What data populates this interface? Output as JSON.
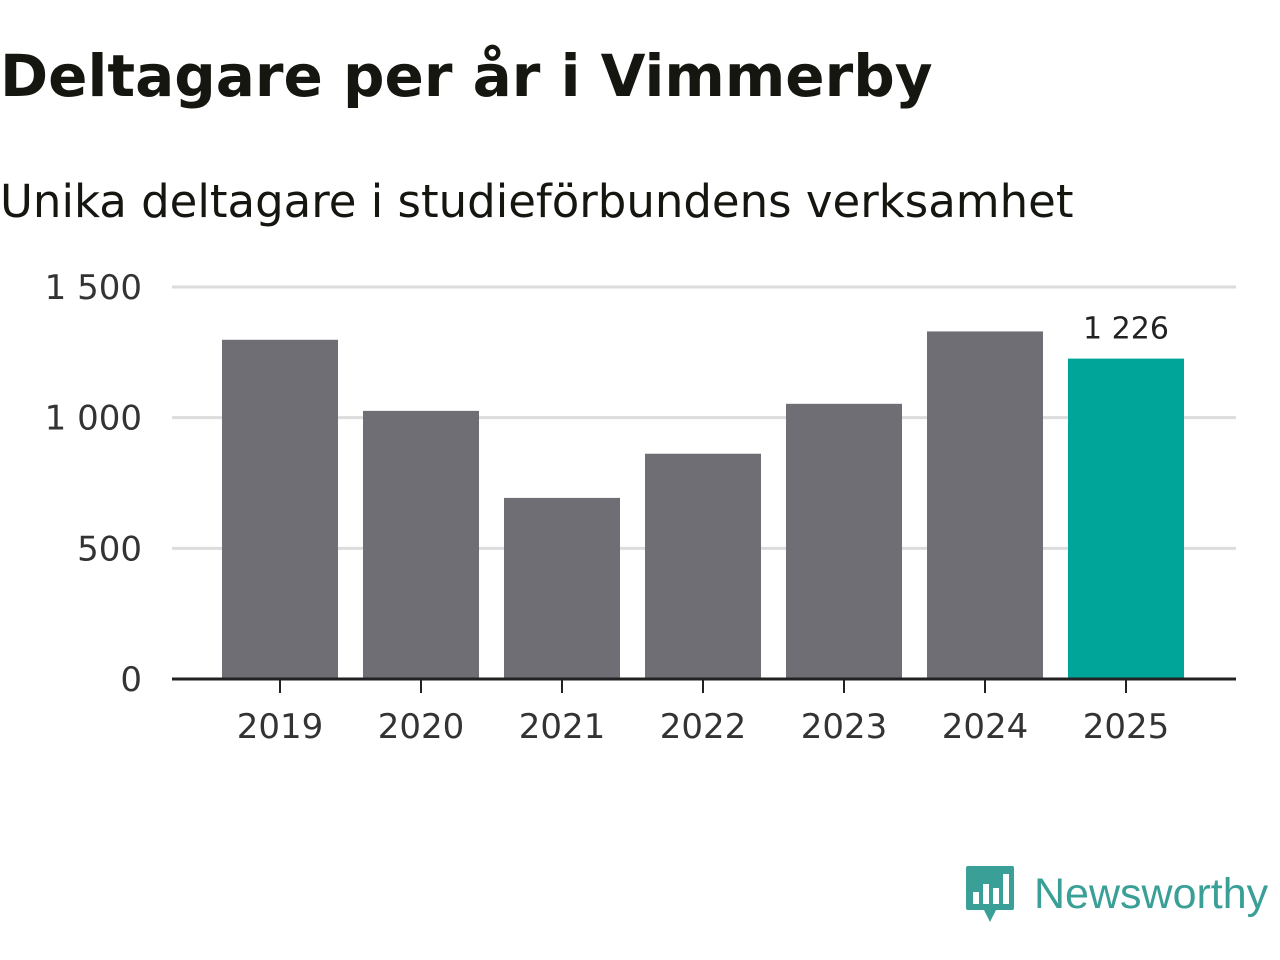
{
  "chart_data": {
    "type": "bar",
    "title": "Deltagare per år i Vimmerby",
    "subtitle": "Unika deltagare i studieförbundens verksamhet",
    "categories": [
      "2019",
      "2020",
      "2021",
      "2022",
      "2023",
      "2024",
      "2025"
    ],
    "values": [
      1298,
      1026,
      693,
      862,
      1053,
      1330,
      1226
    ],
    "highlight_index": 6,
    "highlight_label": "1 226",
    "ylim": [
      0,
      1500
    ],
    "yticks": [
      0,
      500,
      1000,
      1500
    ],
    "ytick_labels": [
      "0",
      "500",
      "1 000",
      "1 500"
    ],
    "xlabel": "",
    "ylabel": "",
    "grid": true,
    "colors": {
      "bar": "#6f6e74",
      "highlight": "#00a59a",
      "grid": "#dcdcdc",
      "axis": "#222222",
      "text": "#333333"
    }
  },
  "brand": {
    "name": "Newsworthy",
    "logo_icon": "newsworthy-chart-icon",
    "color": "#3aa097"
  }
}
